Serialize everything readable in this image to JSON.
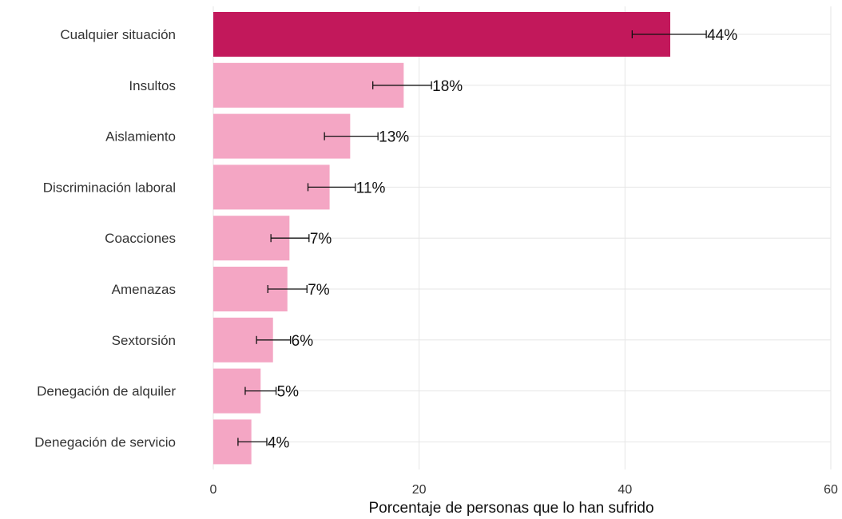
{
  "chart_data": {
    "type": "bar",
    "orientation": "horizontal",
    "xlabel": "Porcentaje de personas que lo han sufrido",
    "ylabel": "",
    "xlim": [
      0,
      60
    ],
    "xticks": [
      0,
      20,
      40,
      60
    ],
    "grid": true,
    "colors": {
      "highlight": "#c2185b",
      "default": "#f4a6c4",
      "grid": "#e6e6e6",
      "errorbar": "#111111"
    },
    "categories": [
      "Cualquier situación",
      "Insultos",
      "Aislamiento",
      "Discriminación laboral",
      "Coacciones",
      "Amenazas",
      "Sextorsión",
      "Denegación de alquiler",
      "Denegación de servicio"
    ],
    "values": [
      44.4,
      18.5,
      13.3,
      11.3,
      7.4,
      7.2,
      5.8,
      4.6,
      3.7
    ],
    "error_low": [
      40.7,
      15.5,
      10.8,
      9.2,
      5.6,
      5.3,
      4.2,
      3.1,
      2.4
    ],
    "error_high": [
      47.9,
      21.2,
      16.0,
      13.8,
      9.3,
      9.1,
      7.5,
      6.1,
      5.2
    ],
    "value_labels": [
      "44%",
      "18%",
      "13%",
      "11%",
      "7%",
      "7%",
      "6%",
      "5%",
      "4%"
    ],
    "highlight_index": 0
  }
}
